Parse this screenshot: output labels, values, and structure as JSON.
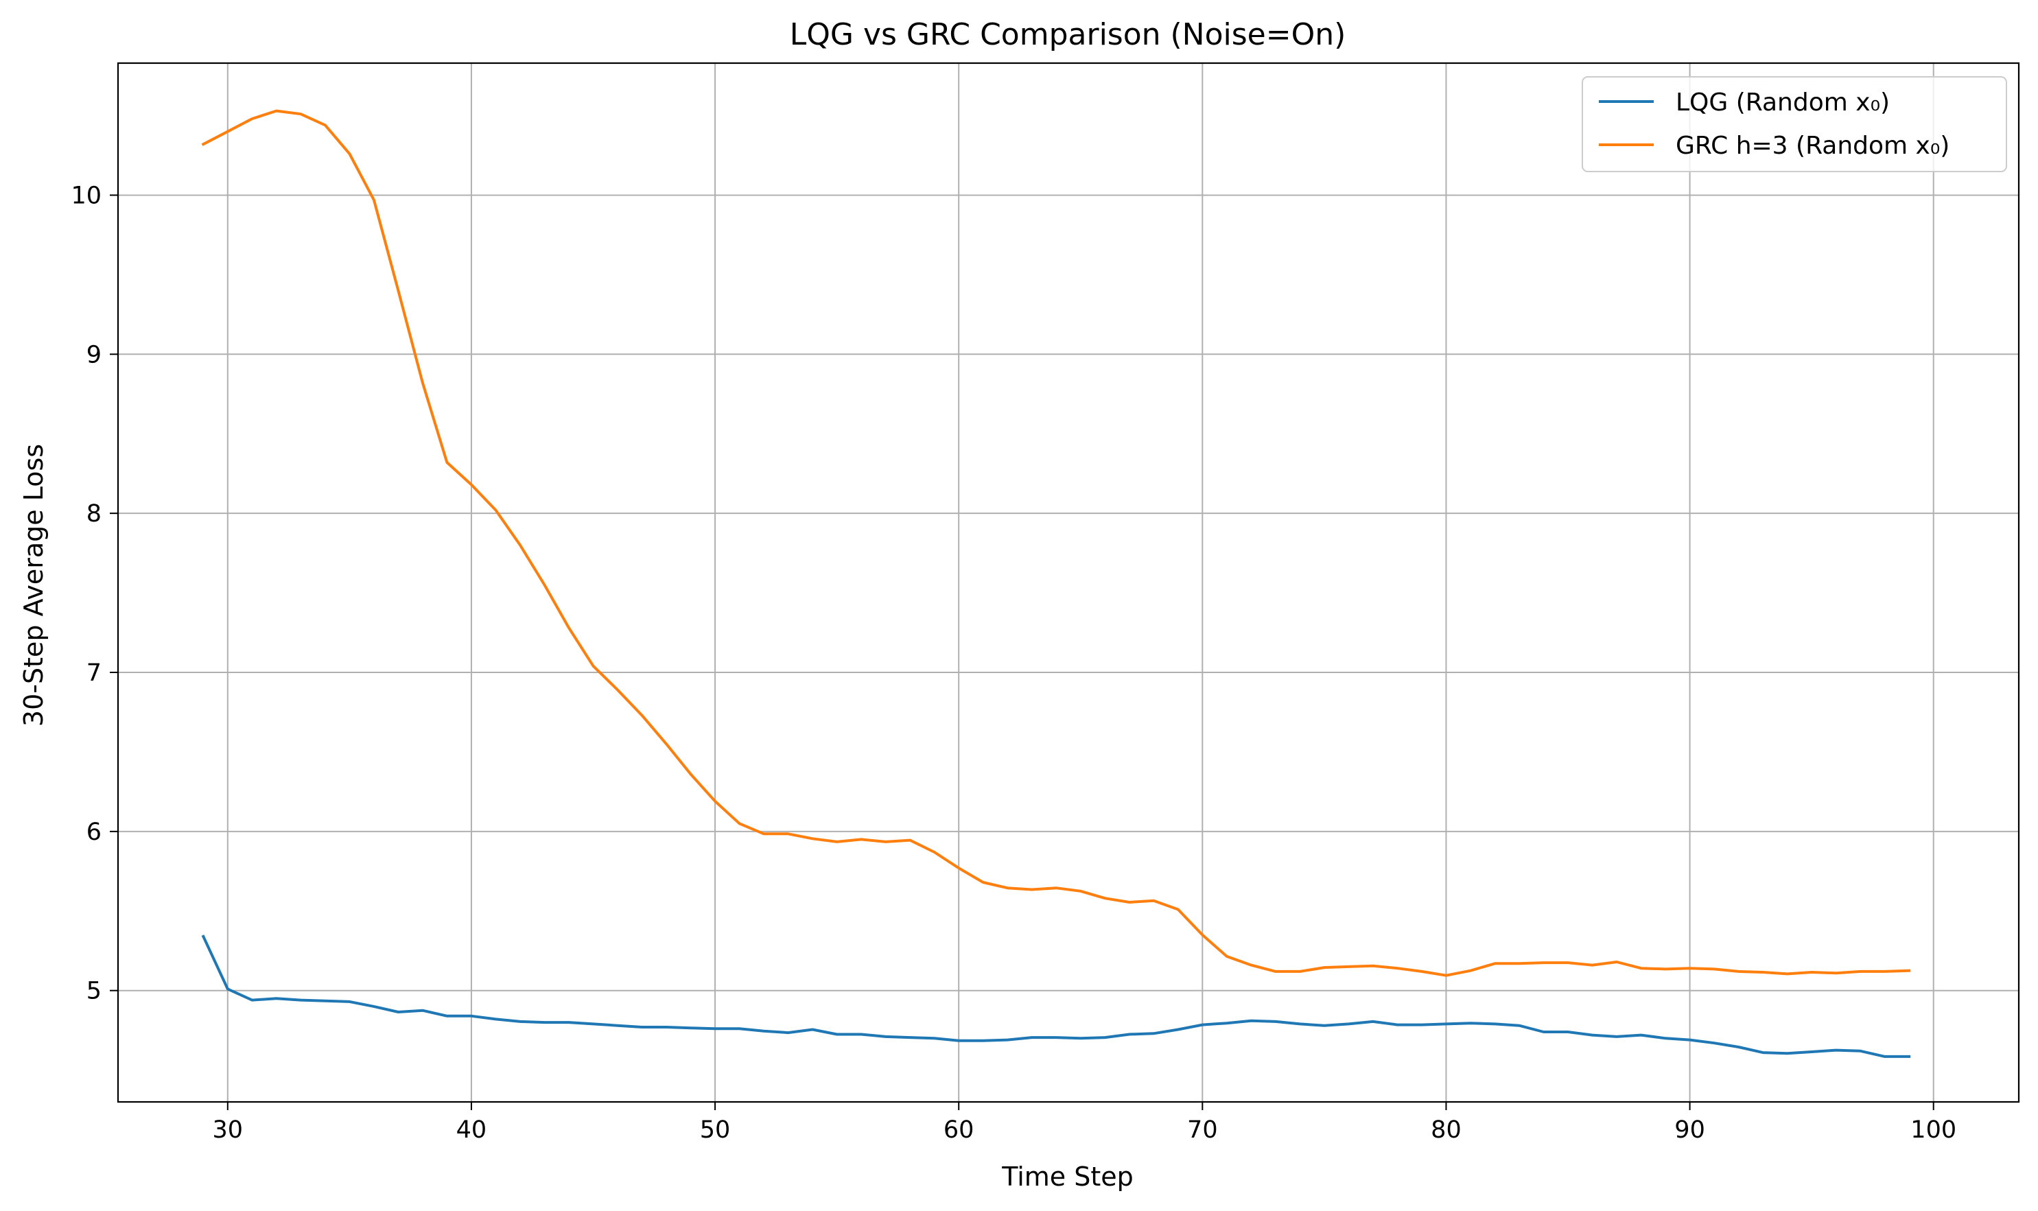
{
  "chart_data": {
    "type": "line",
    "title": "LQG vs GRC Comparison (Noise=On)",
    "xlabel": "Time Step",
    "ylabel": "30-Step Average Loss",
    "xlim": [
      25.5,
      103.5
    ],
    "ylim": [
      4.3,
      10.83
    ],
    "xticks": [
      30,
      40,
      50,
      60,
      70,
      80,
      90,
      100
    ],
    "yticks": [
      5,
      6,
      7,
      8,
      9,
      10
    ],
    "grid": true,
    "legend_position": "top-right",
    "x": [
      29,
      30,
      31,
      32,
      33,
      34,
      35,
      36,
      37,
      38,
      39,
      40,
      41,
      42,
      43,
      44,
      45,
      46,
      47,
      48,
      49,
      50,
      51,
      52,
      53,
      54,
      55,
      56,
      57,
      58,
      59,
      60,
      61,
      62,
      63,
      64,
      65,
      66,
      67,
      68,
      69,
      70,
      71,
      72,
      73,
      74,
      75,
      76,
      77,
      78,
      79,
      80,
      81,
      82,
      83,
      84,
      85,
      86,
      87,
      88,
      89,
      90,
      91,
      92,
      93,
      94,
      95,
      96,
      97,
      98,
      99
    ],
    "series": [
      {
        "name": "LQG (Random x₀)",
        "color": "#1f77b4",
        "values": [
          5.34,
          5.01,
          4.94,
          4.95,
          4.94,
          4.935,
          4.93,
          4.9,
          4.865,
          4.875,
          4.84,
          4.84,
          4.82,
          4.805,
          4.8,
          4.8,
          4.79,
          4.78,
          4.77,
          4.77,
          4.765,
          4.76,
          4.76,
          4.745,
          4.735,
          4.755,
          4.725,
          4.725,
          4.71,
          4.705,
          4.7,
          4.685,
          4.685,
          4.69,
          4.705,
          4.705,
          4.7,
          4.705,
          4.725,
          4.73,
          4.755,
          4.785,
          4.795,
          4.81,
          4.805,
          4.79,
          4.78,
          4.79,
          4.805,
          4.785,
          4.785,
          4.79,
          4.795,
          4.79,
          4.78,
          4.74,
          4.74,
          4.72,
          4.71,
          4.72,
          4.7,
          4.69,
          4.67,
          4.645,
          4.61,
          4.605,
          4.615,
          4.625,
          4.62,
          4.585,
          4.585
        ]
      },
      {
        "name": "GRC h=3 (Random x₀)",
        "color": "#ff7f0e",
        "values": [
          10.32,
          10.4,
          10.48,
          10.53,
          10.51,
          10.44,
          10.26,
          9.97,
          9.4,
          8.82,
          8.32,
          8.18,
          8.02,
          7.8,
          7.55,
          7.28,
          7.04,
          6.89,
          6.73,
          6.55,
          6.36,
          6.19,
          6.05,
          5.985,
          5.985,
          5.955,
          5.935,
          5.95,
          5.935,
          5.945,
          5.87,
          5.77,
          5.68,
          5.645,
          5.635,
          5.645,
          5.625,
          5.58,
          5.555,
          5.565,
          5.51,
          5.35,
          5.215,
          5.16,
          5.12,
          5.12,
          5.145,
          5.15,
          5.155,
          5.14,
          5.12,
          5.095,
          5.125,
          5.17,
          5.17,
          5.175,
          5.175,
          5.16,
          5.18,
          5.14,
          5.135,
          5.14,
          5.135,
          5.12,
          5.115,
          5.105,
          5.115,
          5.11,
          5.12,
          5.12,
          5.125
        ]
      }
    ]
  }
}
